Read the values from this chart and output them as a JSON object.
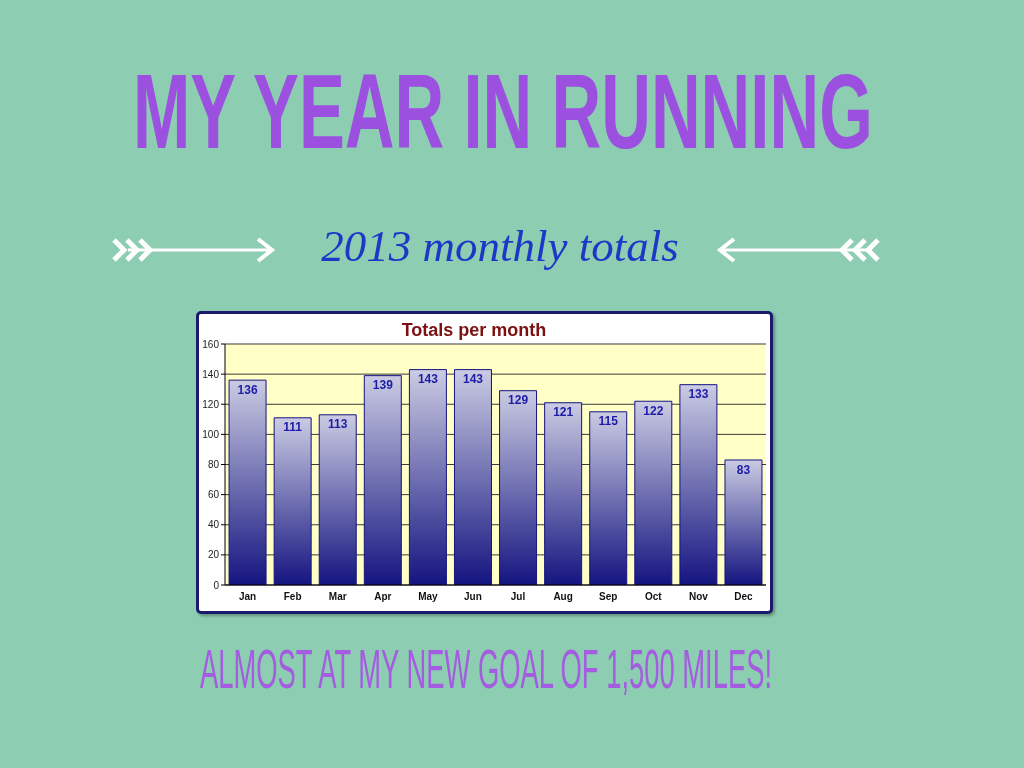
{
  "chart_data": {
    "type": "bar",
    "title": "MY YEAR IN RUNNING",
    "subtitle": "2013 monthly totals",
    "annotations": [
      "Totals per month",
      "ALMOST AT MY NEW GOAL OF 1,500 MILES!"
    ],
    "categories": [
      "Jan",
      "Feb",
      "Mar",
      "Apr",
      "May",
      "Jun",
      "Jul",
      "Aug",
      "Sep",
      "Oct",
      "Nov",
      "Dec"
    ],
    "values": [
      136,
      111,
      113,
      139,
      143,
      143,
      129,
      121,
      115,
      122,
      133,
      83
    ],
    "color": "#141480",
    "ylim": [
      0,
      160
    ],
    "yticks": [
      0,
      20,
      40,
      60,
      80,
      100,
      120,
      140,
      160
    ],
    "grid": "y",
    "data_labels": true
  }
}
